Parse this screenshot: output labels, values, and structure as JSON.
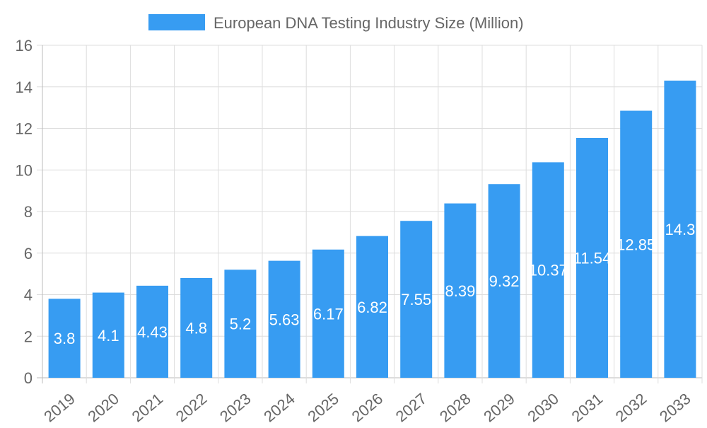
{
  "chart_data": {
    "type": "bar",
    "title": "",
    "legend": {
      "position": "top",
      "entries": [
        "European DNA Testing Industry Size (Million)"
      ]
    },
    "categories": [
      "2019",
      "2020",
      "2021",
      "2022",
      "2023",
      "2024",
      "2025",
      "2026",
      "2027",
      "2028",
      "2029",
      "2030",
      "2031",
      "2032",
      "2033"
    ],
    "series": [
      {
        "name": "European DNA Testing Industry Size (Million)",
        "values": [
          3.8,
          4.1,
          4.43,
          4.8,
          5.2,
          5.63,
          6.17,
          6.82,
          7.55,
          8.39,
          9.32,
          10.37,
          11.54,
          12.85,
          14.3
        ],
        "color": "#379CF2"
      }
    ],
    "data_labels": [
      "3.8",
      "4.1",
      "4.43",
      "4.8",
      "5.2",
      "5.63",
      "6.17",
      "6.82",
      "7.55",
      "8.39",
      "9.32",
      "10.37",
      "11.54",
      "12.85",
      "14.3"
    ],
    "xlabel": "",
    "ylabel": "",
    "ylim": [
      0,
      16
    ],
    "yticks": [
      "0",
      "2",
      "4",
      "6",
      "8",
      "10",
      "12",
      "14",
      "16"
    ],
    "grid": true
  }
}
